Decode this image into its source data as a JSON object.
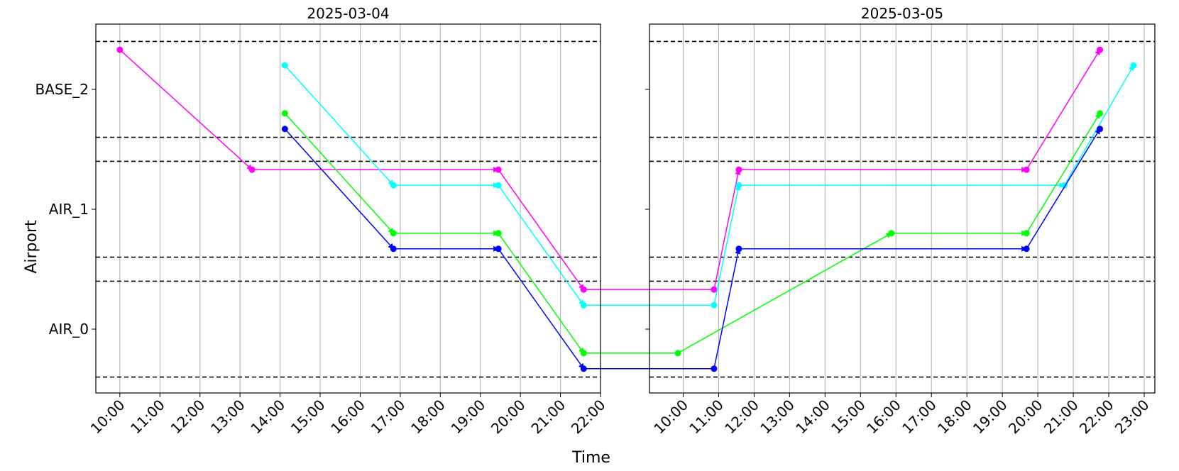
{
  "chart_data": {
    "type": "line",
    "xlabel": "Time",
    "ylabel": "Airport",
    "y_categories": [
      "AIR_0",
      "AIR_1",
      "BASE_2"
    ],
    "grid": "vertical",
    "band_lines": [
      -0.4,
      0.4,
      0.6,
      1.4,
      1.6,
      2.4
    ],
    "panels": [
      {
        "title": "2025-03-04",
        "xlim": [
          9.4,
          22.0
        ],
        "x_ticks": [
          "10:00",
          "11:00",
          "12:00",
          "13:00",
          "14:00",
          "15:00",
          "16:00",
          "17:00",
          "18:00",
          "19:00",
          "20:00",
          "21:00",
          "22:00"
        ],
        "series": [
          {
            "color": "#ff00ff",
            "points": [
              [
                10.0,
                2.33
              ],
              [
                13.3,
                1.33
              ],
              [
                19.45,
                1.33
              ],
              [
                21.58,
                0.33
              ]
            ]
          },
          {
            "color": "#00ffff",
            "points": [
              [
                14.12,
                2.2
              ],
              [
                16.83,
                1.2
              ],
              [
                19.45,
                1.2
              ],
              [
                21.58,
                0.2
              ]
            ]
          },
          {
            "color": "#00ff00",
            "points": [
              [
                14.12,
                1.8
              ],
              [
                16.83,
                0.8
              ],
              [
                19.45,
                0.8
              ],
              [
                21.58,
                -0.2
              ]
            ]
          },
          {
            "color": "#0000ff",
            "points": [
              [
                14.12,
                1.67
              ],
              [
                16.83,
                0.67
              ],
              [
                19.45,
                0.67
              ],
              [
                21.58,
                -0.33
              ]
            ]
          }
        ]
      },
      {
        "title": "2025-03-05",
        "xlim": [
          9.05,
          23.3
        ],
        "x_ticks": [
          "10:00",
          "11:00",
          "12:00",
          "13:00",
          "14:00",
          "15:00",
          "16:00",
          "17:00",
          "18:00",
          "19:00",
          "20:00",
          "21:00",
          "22:00",
          "23:00"
        ],
        "series": [
          {
            "color": "#ff00ff",
            "points": [
              [
                10.87,
                0.33
              ],
              [
                11.57,
                1.33
              ],
              [
                19.68,
                1.33
              ],
              [
                21.75,
                2.33
              ]
            ]
          },
          {
            "color": "#00ffff",
            "points": [
              [
                10.87,
                0.2
              ],
              [
                11.57,
                1.2
              ],
              [
                20.75,
                1.2
              ],
              [
                22.7,
                2.2
              ]
            ]
          },
          {
            "color": "#00ff00",
            "points": [
              [
                9.85,
                -0.2
              ],
              [
                15.87,
                0.8
              ],
              [
                19.68,
                0.8
              ],
              [
                21.75,
                1.8
              ]
            ]
          },
          {
            "color": "#0000ff",
            "points": [
              [
                10.87,
                -0.33
              ],
              [
                11.57,
                0.67
              ],
              [
                19.68,
                0.67
              ],
              [
                21.75,
                1.67
              ]
            ]
          }
        ]
      }
    ],
    "cross_day_links": [
      {
        "color": "#ff00ff",
        "from": [
          21.58,
          0.33
        ],
        "to": [
          10.87,
          0.33
        ]
      },
      {
        "color": "#00ffff",
        "from": [
          21.58,
          0.2
        ],
        "to": [
          10.87,
          0.2
        ]
      },
      {
        "color": "#00ff00",
        "from": [
          21.58,
          -0.2
        ],
        "to": [
          9.85,
          -0.2
        ]
      },
      {
        "color": "#0000ff",
        "from": [
          21.58,
          -0.33
        ],
        "to": [
          10.87,
          -0.33
        ]
      }
    ]
  }
}
